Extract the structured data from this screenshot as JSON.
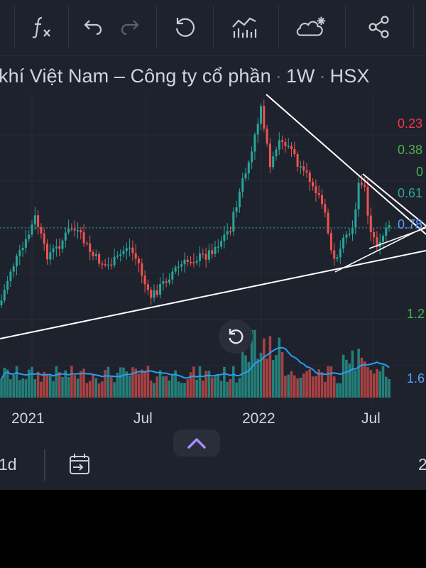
{
  "symbol_title": {
    "name": "khí Việt Nam – Công ty cổ phần",
    "interval": "1W",
    "exchange": "HSX"
  },
  "toolbar": {
    "buttons": [
      {
        "name": "indicators",
        "icon": "function-icon"
      },
      {
        "name": "undo",
        "icon": "undo-icon"
      },
      {
        "name": "redo",
        "icon": "redo-icon"
      },
      {
        "name": "replay",
        "icon": "replay-icon"
      },
      {
        "name": "chart-type",
        "icon": "chart-bars-icon"
      },
      {
        "name": "alerts",
        "icon": "cloud-star-icon"
      },
      {
        "name": "share",
        "icon": "share-icon"
      }
    ]
  },
  "fib_labels": [
    {
      "text": "0.23",
      "color": "#f23645"
    },
    {
      "text": "0.38",
      "color": "#4caf50"
    },
    {
      "text": "0",
      "color": "#4caf50"
    },
    {
      "text": "0.61",
      "color": "#26a69a"
    },
    {
      "text": "0.78",
      "color": "#5b9cf6"
    }
  ],
  "volume_labels": [
    {
      "text": "1.2",
      "color": "#4caf50"
    },
    {
      "text": "1.6",
      "color": "#5b9cf6"
    }
  ],
  "x_axis": {
    "labels": [
      "2021",
      "Jul",
      "2022",
      "Jul"
    ]
  },
  "bottom_bar": {
    "interval_label": "1d",
    "right_label": "2"
  },
  "colors": {
    "up": "#26a69a",
    "down": "#ef5350",
    "volume_ma": "#2a9df4",
    "background": "#1e222d",
    "trendline": "#ffffff"
  }
}
